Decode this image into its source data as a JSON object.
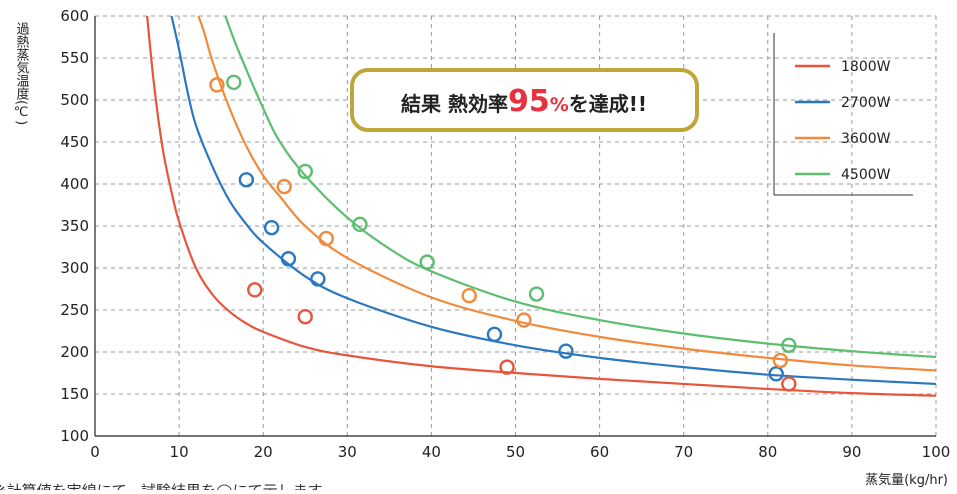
{
  "chart_data": {
    "type": "scatter",
    "ylabel": "過熱蒸気温度(℃)",
    "xlabel": "蒸気量(kg/hr)",
    "xlim": [
      0,
      100
    ],
    "ylim": [
      100,
      600
    ],
    "x_ticks": [
      0,
      10,
      20,
      30,
      40,
      50,
      60,
      70,
      80,
      90,
      100
    ],
    "y_ticks": [
      100,
      150,
      200,
      250,
      300,
      350,
      400,
      450,
      500,
      550,
      600
    ],
    "grid": "dashed",
    "legend_position": "top-right",
    "series": [
      {
        "name": "1800W",
        "color": "#E8553B",
        "curve": [
          [
            6.2,
            600
          ],
          [
            7,
            520
          ],
          [
            8,
            445
          ],
          [
            9,
            395
          ],
          [
            10,
            355
          ],
          [
            12,
            300
          ],
          [
            14,
            268
          ],
          [
            16,
            248
          ],
          [
            18,
            234
          ],
          [
            20,
            224
          ],
          [
            25,
            206
          ],
          [
            30,
            196
          ],
          [
            40,
            183
          ],
          [
            50,
            175
          ],
          [
            60,
            168
          ],
          [
            70,
            162
          ],
          [
            80,
            156
          ],
          [
            90,
            151
          ],
          [
            100,
            148
          ]
        ],
        "points": [
          [
            19,
            274
          ],
          [
            25,
            242
          ],
          [
            49,
            182
          ],
          [
            82.5,
            162
          ]
        ]
      },
      {
        "name": "2700W",
        "color": "#2A78C2",
        "curve": [
          [
            9.1,
            600
          ],
          [
            10,
            560
          ],
          [
            11,
            510
          ],
          [
            12,
            470
          ],
          [
            14,
            420
          ],
          [
            16,
            380
          ],
          [
            18,
            352
          ],
          [
            20,
            330
          ],
          [
            25,
            290
          ],
          [
            30,
            264
          ],
          [
            40,
            230
          ],
          [
            50,
            208
          ],
          [
            60,
            193
          ],
          [
            70,
            182
          ],
          [
            80,
            173
          ],
          [
            90,
            167
          ],
          [
            100,
            162
          ]
        ],
        "points": [
          [
            18,
            405
          ],
          [
            21,
            348
          ],
          [
            23,
            311
          ],
          [
            26.5,
            287
          ],
          [
            47.5,
            221
          ],
          [
            56,
            201
          ],
          [
            81,
            174
          ]
        ]
      },
      {
        "name": "3600W",
        "color": "#F08A3C",
        "curve": [
          [
            12.3,
            600
          ],
          [
            13,
            580
          ],
          [
            14,
            545
          ],
          [
            16,
            490
          ],
          [
            18,
            445
          ],
          [
            20,
            410
          ],
          [
            22,
            385
          ],
          [
            25,
            350
          ],
          [
            30,
            312
          ],
          [
            40,
            265
          ],
          [
            50,
            237
          ],
          [
            60,
            218
          ],
          [
            70,
            204
          ],
          [
            80,
            193
          ],
          [
            90,
            184
          ],
          [
            100,
            178
          ]
        ],
        "points": [
          [
            14.5,
            518
          ],
          [
            22.5,
            397
          ],
          [
            27.5,
            335
          ],
          [
            44.5,
            267
          ],
          [
            51,
            238
          ],
          [
            81.5,
            190
          ]
        ]
      },
      {
        "name": "4500W",
        "color": "#5CBE6E",
        "curve": [
          [
            15.5,
            600
          ],
          [
            17,
            560
          ],
          [
            20,
            490
          ],
          [
            22,
            450
          ],
          [
            25,
            410
          ],
          [
            30,
            360
          ],
          [
            35,
            323
          ],
          [
            40,
            296
          ],
          [
            50,
            260
          ],
          [
            60,
            238
          ],
          [
            70,
            222
          ],
          [
            80,
            210
          ],
          [
            90,
            201
          ],
          [
            100,
            194
          ]
        ],
        "points": [
          [
            16.5,
            521
          ],
          [
            25,
            415
          ],
          [
            31.5,
            352
          ],
          [
            39.5,
            307
          ],
          [
            52.5,
            269
          ],
          [
            82.5,
            208
          ]
        ]
      }
    ],
    "callout": {
      "prefix": "結果 熱効率",
      "number": "95",
      "unit": "%",
      "suffix": "を達成!!",
      "border_color": "#BFA53A",
      "highlight_color": "#E8313F"
    },
    "footnote": "※計算値を実線にて、試験結果を◯にて示します"
  }
}
